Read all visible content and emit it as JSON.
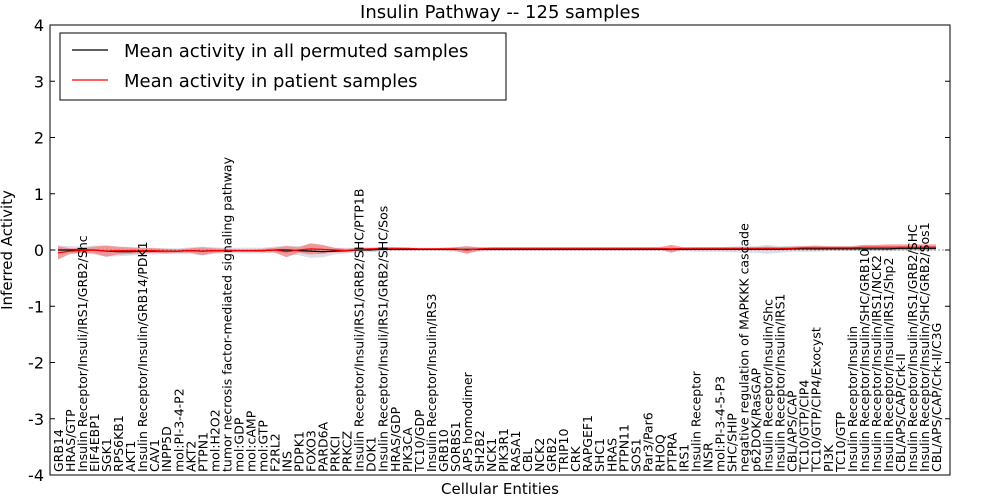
{
  "chart_data": {
    "type": "line",
    "title": "Insulin Pathway -- 125 samples",
    "xlabel": "Cellular Entities",
    "ylabel": "Inferred Activity",
    "ylim": [
      -4,
      4
    ],
    "yticks": [
      -4,
      -3,
      -2,
      -1,
      0,
      1,
      2,
      3,
      4
    ],
    "legend_location": "top-left",
    "colors": {
      "permuted": "#000000",
      "patient": "#ff0000",
      "patient_band": "#f08080",
      "permuted_band": "#c8c8d8"
    },
    "categories": [
      "GRB14",
      "HRAS/GTP",
      "Insulin Receptor/Insuli/IRS1/GRB2/Shc",
      "EIF4EBP1",
      "SGK1",
      "RPS6KB1",
      "AKT1",
      "Insulin Receptor/Insulin/GRB14/PDK1",
      "CAV1",
      "INPP5D",
      "mol:PI-3-4-P2",
      "AKT2",
      "PTPN1",
      "mol:H2O2",
      "tumor necrosis factor-mediated signaling pathway",
      "mol:GDP",
      "mol:cAMP",
      "mol:GTP",
      "F2RL2",
      "INS",
      "PDPK1",
      "FOXO3",
      "PARD6A",
      "PRKCI",
      "PRKCZ",
      "Insulin Receptor/Insuli/IRS1/GRB2/SHC/PTP1B",
      "DOK1",
      "Insulin Receptor/Insuli/IRS1/GRB2/SHC/Sos",
      "HRAS/GDP",
      "PIK3CA",
      "TC10/GDP",
      "Insulin Receptor/Insulin/IRS3",
      "GRB10",
      "SORBS1",
      "APS homodimer",
      "SH2B2",
      "NCK1",
      "PIK3R1",
      "RASA1",
      "CBL",
      "NCK2",
      "GRB2",
      "TRIP10",
      "CRK",
      "RAPGEF1",
      "SHC1",
      "HRAS",
      "PTPN11",
      "SOS1",
      "Par3/Par6",
      "RHOQ",
      "PTPRA",
      "IRS1",
      "Insulin Receptor",
      "INSR",
      "mol:PI-3-4-5-P3",
      "SHC/SHIP",
      "negative regulation of MAPKKK cascade",
      "p62DOK/RasGAP",
      "Insulin Receptor/Insulin/Shc",
      "Insulin Receptor/Insulin/IRS1",
      "CBL/APS/CAP",
      "TC10/GTP/CIP4",
      "TC10/GTP/CIP4/Exocyst",
      "PI3K",
      "TC10/GTP",
      "Insulin Receptor/Insulin",
      "Insulin Receptor/Insulin/SHC/GRB10",
      "Insulin Receptor/Insulin/IRS1/NCK2",
      "Insulin Receptor/Insulin/IRS1/Shp2",
      "CBL/APS/CAP/Crk-II",
      "Insulin Receptor/Insulin/IRS1/GRB2/SHC",
      "Insulin Receptor/Insulin/SHC/GRB2/Sos1",
      "CBL/APS/CAP/Crk-II/C3G"
    ],
    "series": [
      {
        "name": "Mean activity in all permuted samples",
        "values": [
          0,
          0,
          0,
          0,
          -0.02,
          -0.03,
          -0.03,
          -0.02,
          -0.02,
          -0.02,
          -0.02,
          -0.01,
          -0.02,
          -0.01,
          -0.01,
          -0.01,
          -0.01,
          -0.01,
          0,
          0,
          -0.01,
          -0.02,
          -0.03,
          -0.02,
          -0.01,
          0,
          0,
          0.01,
          0.01,
          0.01,
          0.01,
          0.01,
          0.01,
          0.01,
          0.01,
          0.01,
          0.01,
          0.01,
          0.01,
          0.01,
          0.01,
          0.01,
          0.01,
          0.01,
          0.01,
          0.01,
          0.01,
          0.01,
          0.01,
          0.01,
          0.01,
          0.01,
          0.01,
          0.01,
          0.01,
          0.01,
          0.01,
          0.01,
          0.01,
          0.01,
          0.01,
          0.02,
          0.02,
          0.02,
          0.02,
          0.02,
          0.02,
          0.02,
          0.02,
          0.02,
          0.03,
          0.03,
          0.03,
          0.03
        ]
      },
      {
        "name": "Mean activity in patient samples",
        "values": [
          -0.05,
          -0.02,
          -0.01,
          0,
          -0.02,
          -0.01,
          -0.01,
          -0.01,
          -0.01,
          -0.02,
          -0.02,
          -0.01,
          -0.02,
          -0.01,
          -0.01,
          -0.01,
          -0.01,
          -0.01,
          0,
          -0.03,
          0,
          0.02,
          0.01,
          0,
          -0.01,
          0.01,
          0.02,
          0.03,
          0.03,
          0.03,
          0.02,
          0.02,
          0.02,
          0.02,
          0,
          0.02,
          0.03,
          0.03,
          0.03,
          0.03,
          0.03,
          0.03,
          0.03,
          0.03,
          0.03,
          0.03,
          0.03,
          0.03,
          0.03,
          0.03,
          0.03,
          0.02,
          0.03,
          0.03,
          0.03,
          0.03,
          0.03,
          0.03,
          0.03,
          0.03,
          0.03,
          0.03,
          0.04,
          0.04,
          0.04,
          0.04,
          0.04,
          0.05,
          0.05,
          0.05,
          0.05,
          0.05,
          0.05,
          0.05
        ]
      }
    ],
    "patient_band_halfwidth": [
      0.12,
      0.05,
      0.04,
      0.06,
      0.1,
      0.07,
      0.06,
      0.05,
      0.04,
      0.04,
      0.03,
      0.04,
      0.07,
      0.04,
      0.03,
      0.02,
      0.02,
      0.03,
      0.04,
      0.1,
      0.05,
      0.1,
      0.08,
      0.04,
      0.03,
      0.03,
      0.02,
      0.02,
      0.02,
      0.01,
      0.01,
      0.01,
      0.02,
      0.03,
      0.07,
      0.03,
      0.02,
      0.02,
      0.02,
      0.02,
      0.02,
      0.02,
      0.02,
      0.02,
      0.02,
      0.02,
      0.02,
      0.02,
      0.02,
      0.02,
      0.02,
      0.07,
      0.02,
      0.02,
      0.02,
      0.02,
      0.02,
      0.02,
      0.02,
      0.03,
      0.02,
      0.03,
      0.03,
      0.04,
      0.03,
      0.03,
      0.03,
      0.04,
      0.04,
      0.05,
      0.05,
      0.05,
      0.05,
      0.05
    ],
    "permuted_band_halfwidth": [
      0.08,
      0.07,
      0.06,
      0.08,
      0.1,
      0.08,
      0.07,
      0.06,
      0.06,
      0.05,
      0.05,
      0.06,
      0.08,
      0.06,
      0.05,
      0.05,
      0.05,
      0.05,
      0.06,
      0.08,
      0.08,
      0.12,
      0.1,
      0.06,
      0.05,
      0.04,
      0.04,
      0.03,
      0.03,
      0.03,
      0.03,
      0.03,
      0.03,
      0.04,
      0.05,
      0.04,
      0.03,
      0.03,
      0.03,
      0.03,
      0.03,
      0.03,
      0.03,
      0.03,
      0.03,
      0.03,
      0.03,
      0.03,
      0.03,
      0.03,
      0.03,
      0.04,
      0.03,
      0.04,
      0.04,
      0.04,
      0.05,
      0.06,
      0.06,
      0.08,
      0.06,
      0.05,
      0.05,
      0.05,
      0.04,
      0.04,
      0.04,
      0.04,
      0.04,
      0.04,
      0.04,
      0.04,
      0.04,
      0.04
    ]
  }
}
